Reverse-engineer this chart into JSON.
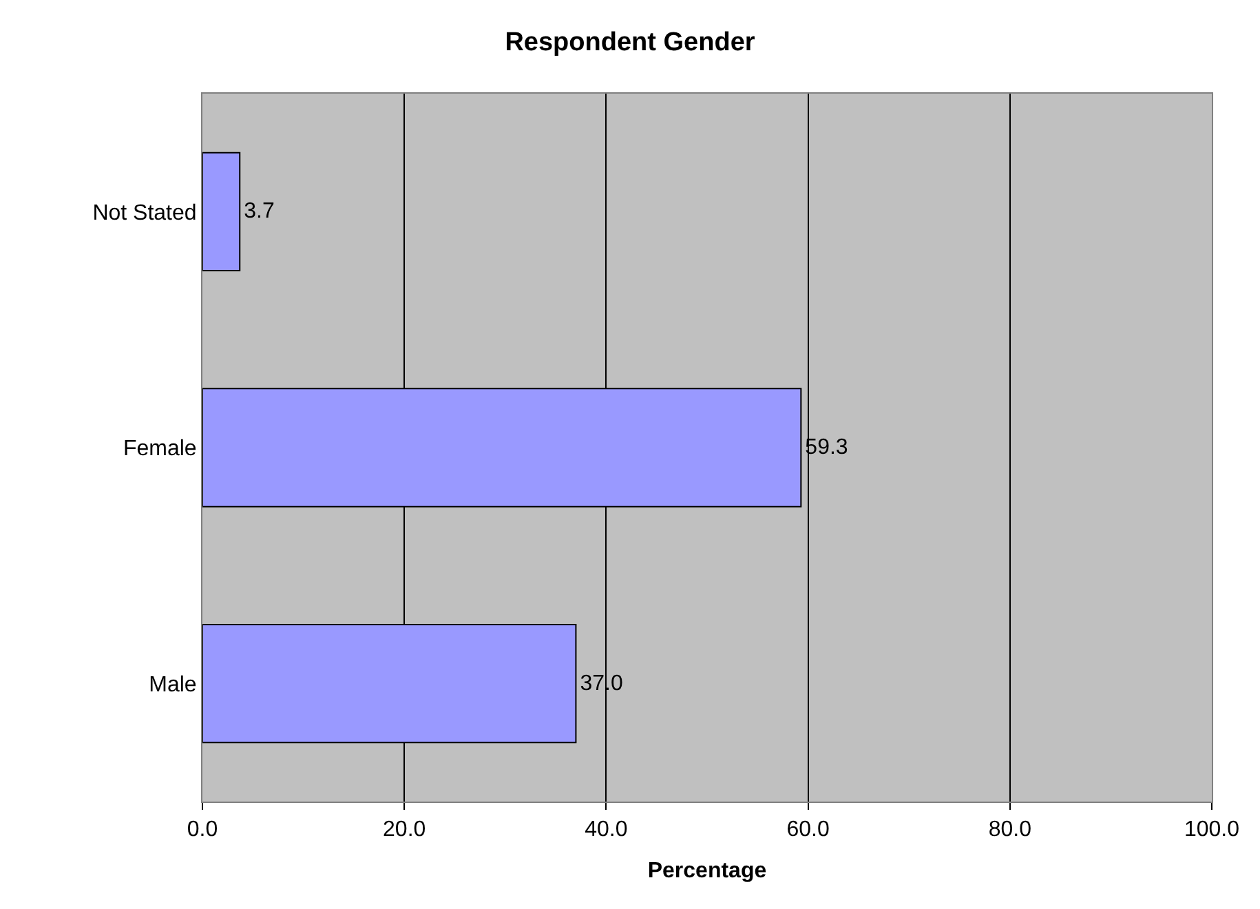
{
  "chart_data": {
    "type": "bar",
    "orientation": "horizontal",
    "title": "Respondent Gender",
    "xlabel": "Percentage",
    "categories": [
      "Not Stated",
      "Female",
      "Male"
    ],
    "values": [
      3.7,
      59.3,
      37.0
    ],
    "value_labels": [
      "3.7",
      "59.3",
      "37.0"
    ],
    "color": "#9999ff",
    "xlim": [
      0,
      100
    ],
    "xticks": [
      {
        "value": 0,
        "label": "0.0"
      },
      {
        "value": 20,
        "label": "20.0"
      },
      {
        "value": 40,
        "label": "40.0"
      },
      {
        "value": 60,
        "label": "60.0"
      },
      {
        "value": 80,
        "label": "80.0"
      },
      {
        "value": 100,
        "label": "100.0"
      }
    ],
    "grid": "x"
  }
}
